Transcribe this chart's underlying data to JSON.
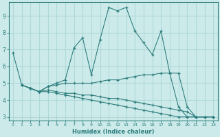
{
  "bg_color": "#cceaea",
  "grid_color": "#b0d8d8",
  "line_color": "#2e7d7d",
  "xlabel": "Humidex (Indice chaleur)",
  "xlim": [
    -0.5,
    23.5
  ],
  "ylim": [
    2.8,
    9.8
  ],
  "xticks": [
    0,
    1,
    2,
    3,
    4,
    5,
    6,
    7,
    8,
    9,
    10,
    11,
    12,
    13,
    14,
    15,
    16,
    17,
    18,
    19,
    20,
    21,
    22,
    23
  ],
  "yticks": [
    3,
    4,
    5,
    6,
    7,
    8,
    9
  ],
  "lines": [
    {
      "x": [
        0,
        1,
        2,
        3,
        4,
        5,
        6,
        7,
        8,
        9,
        10,
        11,
        12,
        13,
        14,
        15,
        16,
        17,
        18,
        19,
        20,
        21,
        22
      ],
      "y": [
        6.8,
        4.9,
        4.7,
        4.5,
        4.8,
        5.0,
        5.2,
        7.1,
        7.7,
        5.5,
        7.6,
        9.5,
        9.3,
        9.5,
        8.1,
        7.4,
        6.7,
        8.1,
        5.6,
        3.6,
        3.0,
        3.0,
        3.0
      ]
    },
    {
      "x": [
        1,
        2,
        3,
        4,
        5,
        6,
        7,
        8,
        9,
        10,
        11,
        12,
        13,
        14,
        15,
        16,
        17,
        18,
        19,
        20,
        21,
        22,
        23
      ],
      "y": [
        4.9,
        4.7,
        4.5,
        4.8,
        4.9,
        5.0,
        5.0,
        5.0,
        5.0,
        5.1,
        5.2,
        5.2,
        5.3,
        5.4,
        5.5,
        5.5,
        5.6,
        5.6,
        5.6,
        3.6,
        3.0,
        3.0,
        3.0
      ]
    },
    {
      "x": [
        1,
        2,
        3,
        4,
        5,
        6,
        7,
        8,
        9,
        10,
        11,
        12,
        13,
        14,
        15,
        16,
        17,
        18,
        19,
        20,
        21,
        22,
        23
      ],
      "y": [
        4.9,
        4.7,
        4.5,
        4.6,
        4.5,
        4.4,
        4.4,
        4.3,
        4.3,
        4.2,
        4.1,
        4.1,
        4.0,
        3.9,
        3.8,
        3.7,
        3.6,
        3.5,
        3.4,
        3.3,
        3.0,
        3.0,
        3.0
      ]
    },
    {
      "x": [
        1,
        2,
        3,
        4,
        5,
        6,
        7,
        8,
        9,
        10,
        11,
        12,
        13,
        14,
        15,
        16,
        17,
        18,
        19,
        20,
        21,
        22,
        23
      ],
      "y": [
        4.9,
        4.7,
        4.5,
        4.5,
        4.4,
        4.3,
        4.2,
        4.1,
        4.0,
        3.9,
        3.8,
        3.7,
        3.6,
        3.5,
        3.4,
        3.3,
        3.2,
        3.1,
        3.0,
        3.0,
        3.0,
        3.0,
        3.0
      ]
    }
  ]
}
